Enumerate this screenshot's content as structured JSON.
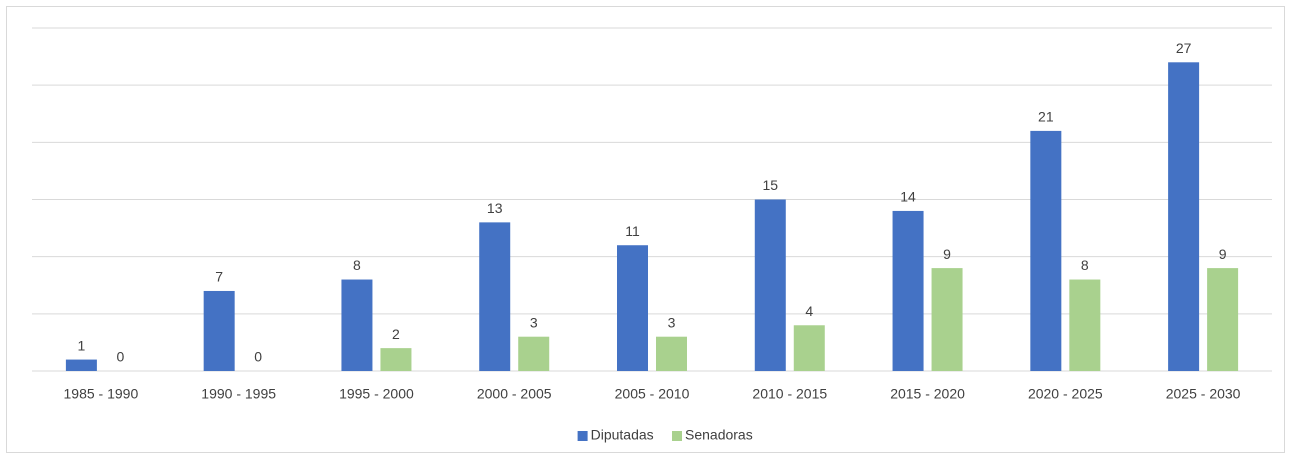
{
  "chart_data": {
    "type": "bar",
    "categories": [
      "1985 - 1990",
      "1990 - 1995",
      "1995 - 2000",
      "2000 - 2005",
      "2005 - 2010",
      "2010 - 2015",
      "2015 - 2020",
      "2020 - 2025",
      "2025 - 2030"
    ],
    "series": [
      {
        "name": "Diputadas",
        "color": "#4472c4",
        "values": [
          1,
          7,
          8,
          13,
          11,
          15,
          14,
          21,
          27
        ]
      },
      {
        "name": "Senadoras",
        "color": "#a9d18e",
        "values": [
          0,
          0,
          2,
          3,
          3,
          4,
          9,
          8,
          9
        ]
      }
    ],
    "ylim": [
      0,
      30
    ],
    "yticks": [
      0,
      5,
      10,
      15,
      20,
      25,
      30
    ],
    "grid": true,
    "legend": "bottom"
  }
}
